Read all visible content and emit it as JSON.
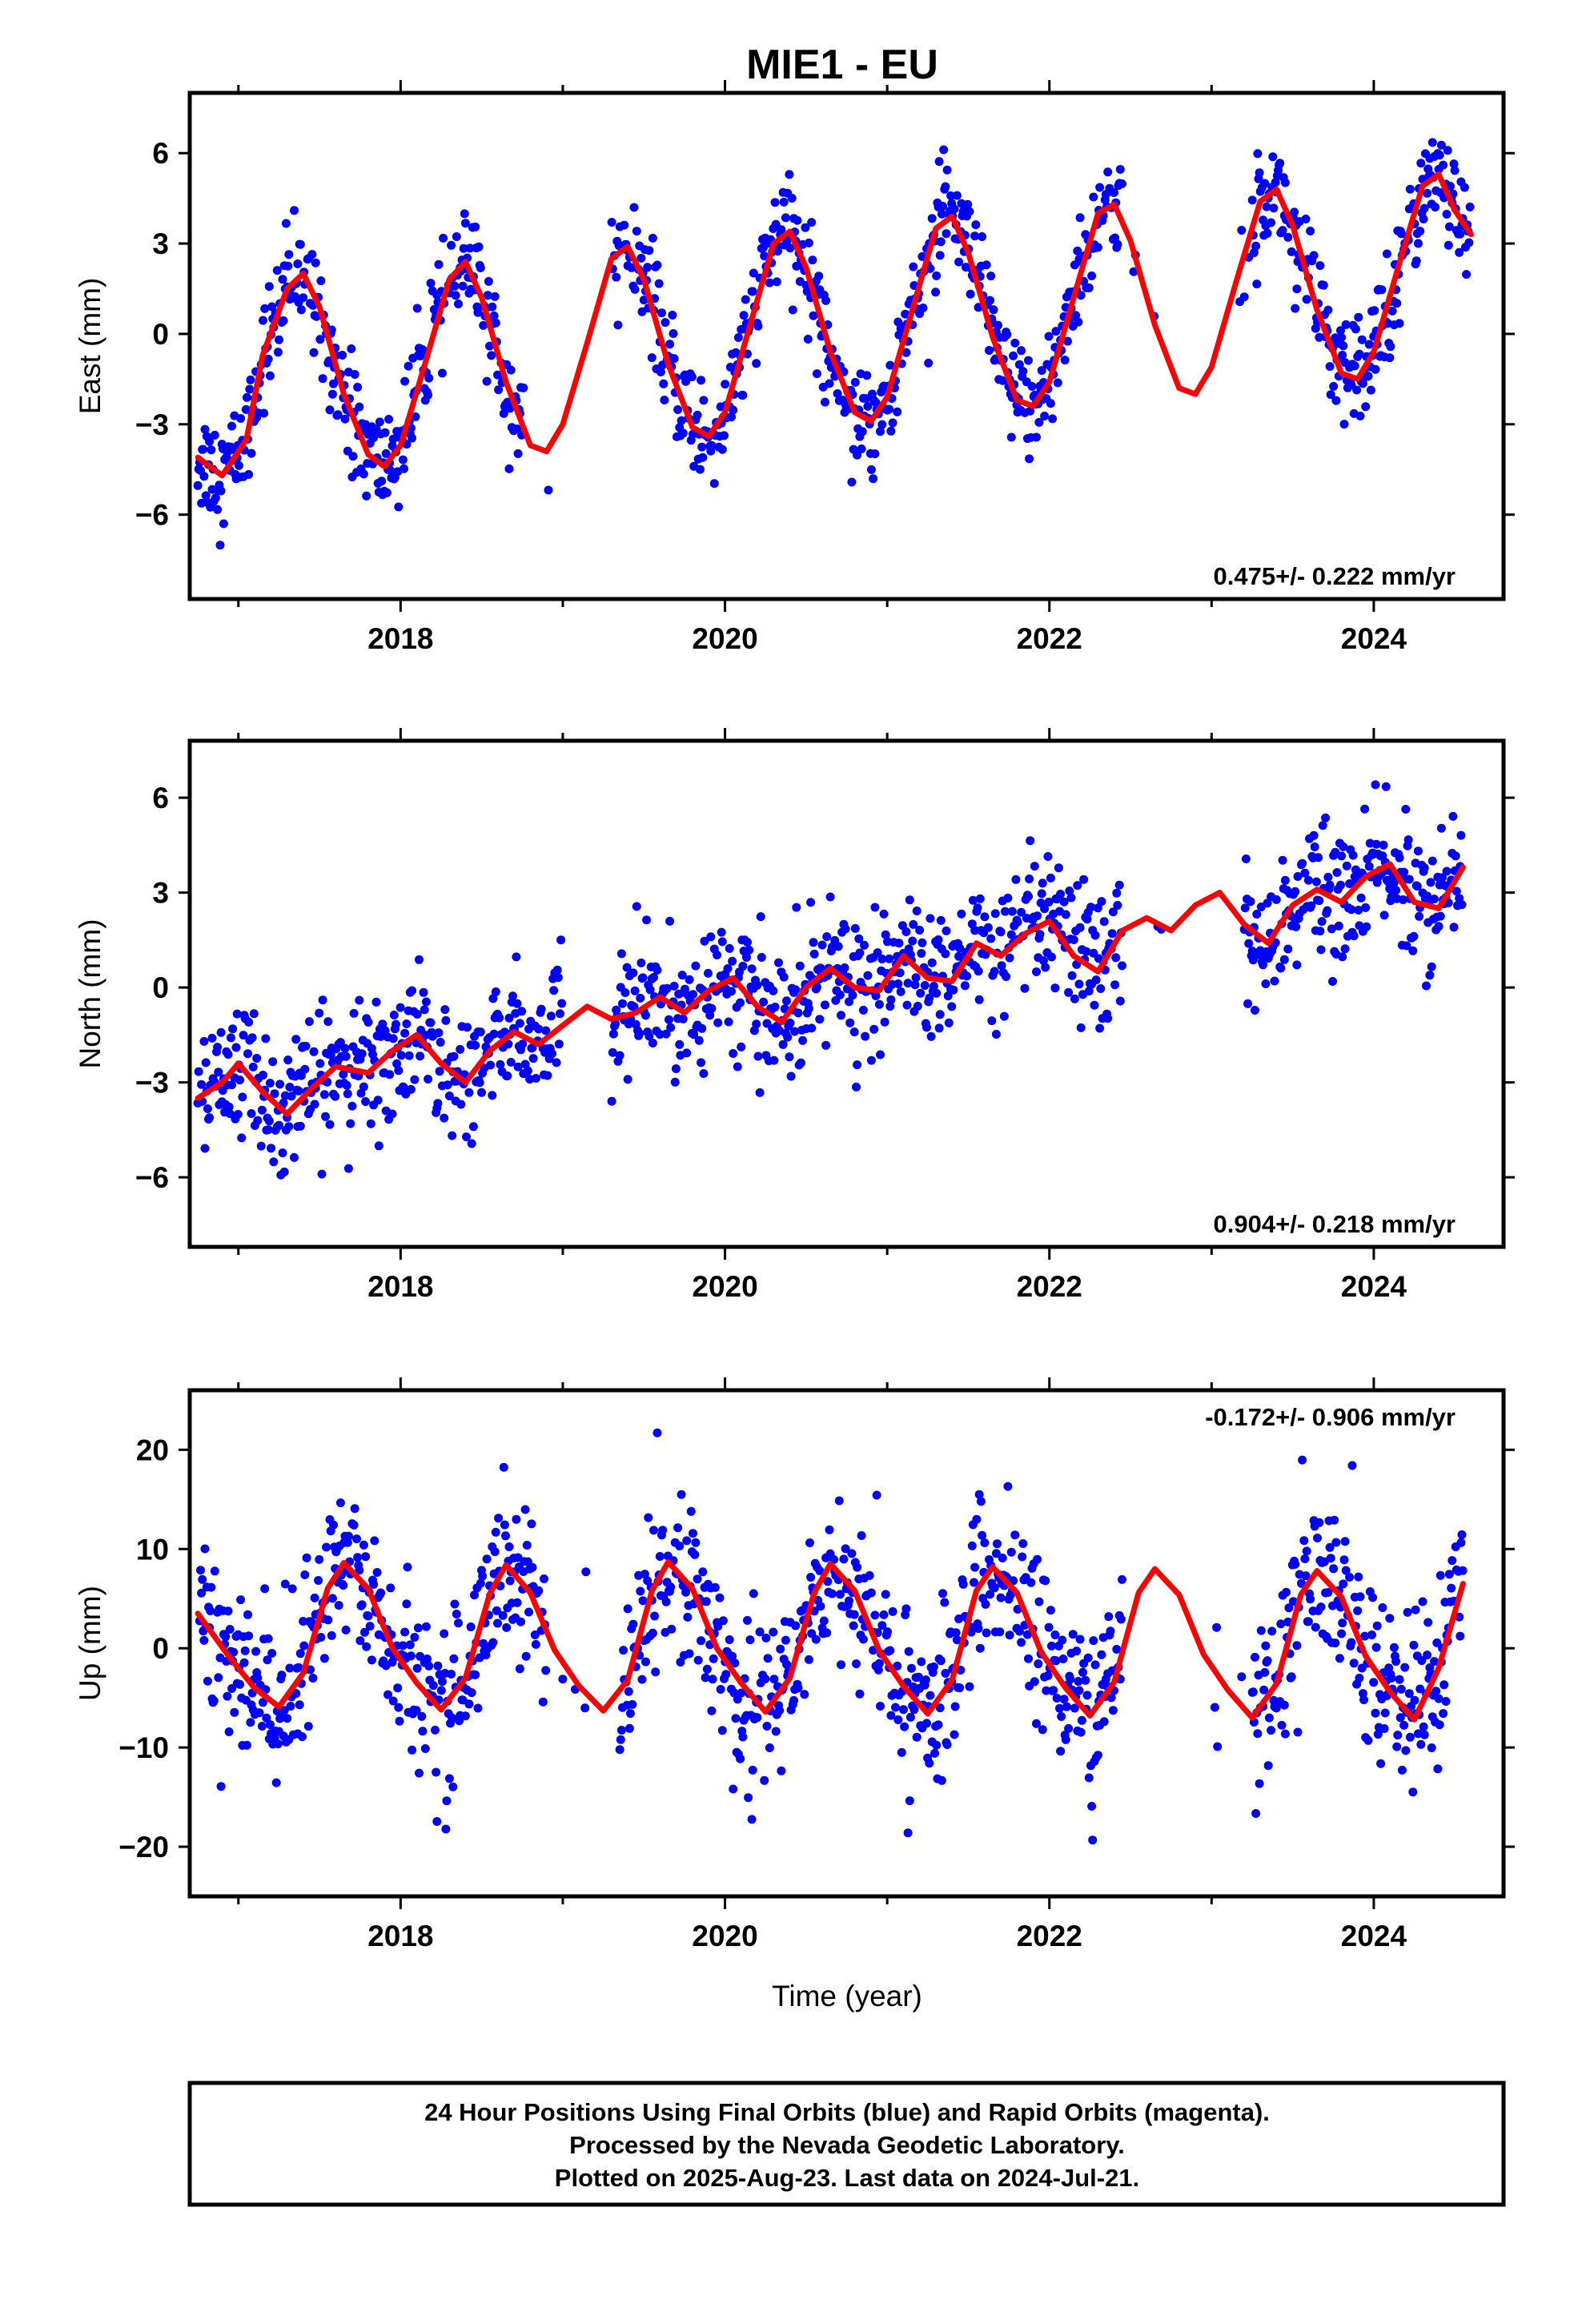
{
  "title": "MIE1 - EU",
  "xlabel": "Time (year)",
  "colors": {
    "points": "#0000ff",
    "fit": "#ff0000",
    "frame": "#000000"
  },
  "footer": {
    "lines": [
      "24 Hour Positions Using Final Orbits (blue) and Rapid Orbits (magenta).",
      "Processed by the Nevada Geodetic Laboratory.",
      "Plotted on 2025-Aug-23. Last data on 2024-Jul-21."
    ]
  },
  "chart_data": [
    {
      "type": "scatter",
      "ylabel": "East (mm)",
      "rate_text": "0.475+/- 0.222 mm/yr",
      "xlim": [
        2016.7,
        2024.8
      ],
      "ylim": [
        -8.8,
        8
      ],
      "yticks": [
        -6,
        -3,
        0,
        3,
        6
      ],
      "xticks": [
        2018,
        2020,
        2022,
        2024
      ],
      "fit": {
        "name": "model",
        "x": [
          2016.75,
          2016.9,
          2017.05,
          2017.15,
          2017.3,
          2017.4,
          2017.5,
          2017.65,
          2017.8,
          2017.9,
          2018.0,
          2018.15,
          2018.3,
          2018.4,
          2018.5,
          2018.65,
          2018.8,
          2018.9,
          2019.0,
          2019.15,
          2019.3,
          2019.4,
          2019.5,
          2019.65,
          2019.8,
          2019.9,
          2020.0,
          2020.15,
          2020.3,
          2020.4,
          2020.5,
          2020.65,
          2020.8,
          2020.9,
          2021.0,
          2021.15,
          2021.3,
          2021.4,
          2021.5,
          2021.65,
          2021.8,
          2021.9,
          2022.0,
          2022.15,
          2022.3,
          2022.4,
          2022.5,
          2022.65,
          2022.8,
          2022.9,
          2023.0,
          2023.15,
          2023.3,
          2023.4,
          2023.5,
          2023.65,
          2023.8,
          2023.9,
          2024.0,
          2024.15,
          2024.3,
          2024.4,
          2024.5,
          2024.6
        ],
        "y": [
          -4.1,
          -4.7,
          -3.5,
          -0.7,
          1.5,
          2.0,
          0.9,
          -2.0,
          -4.0,
          -4.4,
          -3.7,
          -1.0,
          1.8,
          2.4,
          1.2,
          -1.6,
          -3.7,
          -3.9,
          -3.0,
          -0.3,
          2.5,
          2.9,
          1.8,
          -1.0,
          -3.1,
          -3.4,
          -2.6,
          0.2,
          3.0,
          3.4,
          2.2,
          -0.6,
          -2.6,
          -2.9,
          -2.1,
          0.7,
          3.5,
          3.9,
          2.7,
          -0.1,
          -2.2,
          -2.4,
          -1.6,
          1.2,
          4.0,
          4.3,
          3.1,
          0.3,
          -1.8,
          -2.0,
          -1.1,
          1.7,
          4.4,
          4.8,
          3.6,
          0.8,
          -1.3,
          -1.5,
          -0.6,
          2.2,
          4.9,
          5.3,
          4.1,
          3.3
        ]
      }
    },
    {
      "type": "scatter",
      "ylabel": "North (mm)",
      "rate_text": "0.904+/- 0.218 mm/yr",
      "xlim": [
        2016.7,
        2024.8
      ],
      "ylim": [
        -8.2,
        7.8
      ],
      "yticks": [
        -6,
        -3,
        0,
        3,
        6
      ],
      "xticks": [
        2018,
        2020,
        2022,
        2024
      ],
      "fit": {
        "name": "model",
        "x": [
          2016.75,
          2016.9,
          2017.0,
          2017.15,
          2017.3,
          2017.45,
          2017.6,
          2017.8,
          2017.95,
          2018.1,
          2018.25,
          2018.4,
          2018.55,
          2018.7,
          2018.85,
          2019.0,
          2019.15,
          2019.3,
          2019.45,
          2019.6,
          2019.75,
          2019.9,
          2020.05,
          2020.2,
          2020.35,
          2020.5,
          2020.65,
          2020.8,
          2020.95,
          2021.1,
          2021.25,
          2021.4,
          2021.55,
          2021.7,
          2021.85,
          2022.0,
          2022.15,
          2022.3,
          2022.45,
          2022.6,
          2022.75,
          2022.9,
          2023.05,
          2023.2,
          2023.35,
          2023.5,
          2023.65,
          2023.8,
          2023.95,
          2024.1,
          2024.25,
          2024.4,
          2024.55
        ],
        "y": [
          -3.5,
          -3.0,
          -2.4,
          -3.3,
          -4.0,
          -3.2,
          -2.5,
          -2.7,
          -2.0,
          -1.5,
          -2.4,
          -3.0,
          -2.0,
          -1.4,
          -1.8,
          -1.2,
          -0.6,
          -1.0,
          -0.8,
          -0.3,
          -0.8,
          -0.1,
          0.3,
          -0.6,
          -1.1,
          0.0,
          0.6,
          0.0,
          -0.1,
          1.0,
          0.3,
          0.2,
          1.4,
          1.0,
          1.7,
          2.1,
          1.0,
          0.5,
          1.8,
          2.2,
          1.8,
          2.6,
          3.0,
          2.0,
          1.4,
          2.6,
          3.1,
          2.7,
          3.5,
          3.9,
          2.7,
          2.5,
          3.8
        ]
      }
    },
    {
      "type": "scatter",
      "ylabel": "Up (mm)",
      "rate_text": "-0.172+/- 0.906 mm/yr",
      "xlim": [
        2016.7,
        2024.8
      ],
      "ylim": [
        -25,
        26
      ],
      "yticks": [
        -20,
        -10,
        0,
        10,
        20
      ],
      "xticks": [
        2018,
        2020,
        2022,
        2024
      ],
      "fit": {
        "name": "model",
        "x": [
          2016.75,
          2016.95,
          2017.1,
          2017.25,
          2017.4,
          2017.55,
          2017.65,
          2017.8,
          2017.95,
          2018.1,
          2018.25,
          2018.4,
          2018.55,
          2018.65,
          2018.8,
          2018.95,
          2019.1,
          2019.25,
          2019.4,
          2019.55,
          2019.65,
          2019.8,
          2019.95,
          2020.1,
          2020.25,
          2020.4,
          2020.55,
          2020.65,
          2020.8,
          2020.95,
          2021.1,
          2021.25,
          2021.4,
          2021.55,
          2021.65,
          2021.8,
          2021.95,
          2022.1,
          2022.25,
          2022.4,
          2022.55,
          2022.65,
          2022.8,
          2022.95,
          2023.1,
          2023.25,
          2023.4,
          2023.55,
          2023.65,
          2023.8,
          2023.95,
          2024.1,
          2024.25,
          2024.4,
          2024.55
        ],
        "y": [
          3.5,
          -1.0,
          -4.0,
          -5.9,
          -2.5,
          6.0,
          8.6,
          6.0,
          0.0,
          -3.5,
          -6.2,
          -3.0,
          5.5,
          8.4,
          5.6,
          -0.2,
          -3.8,
          -6.3,
          -3.2,
          5.8,
          8.7,
          6.0,
          0.0,
          -3.5,
          -6.4,
          -3.0,
          5.6,
          8.5,
          5.8,
          -0.2,
          -3.8,
          -6.6,
          -3.2,
          5.8,
          8.2,
          5.6,
          -0.4,
          -4.0,
          -6.8,
          -3.4,
          5.6,
          8.0,
          5.4,
          -0.6,
          -4.2,
          -7.0,
          -3.6,
          5.4,
          7.8,
          5.2,
          -0.8,
          -4.4,
          -7.2,
          -2.0,
          6.5
        ]
      }
    }
  ]
}
